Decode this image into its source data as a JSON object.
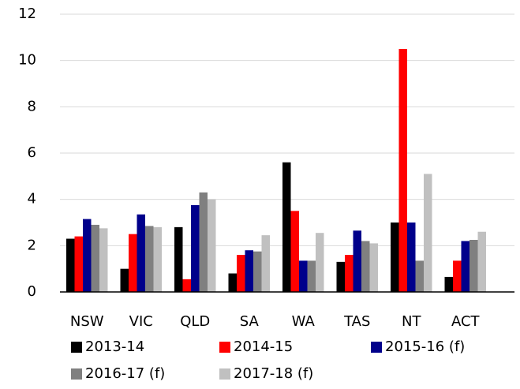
{
  "chart_data": {
    "type": "bar",
    "categories": [
      "NSW",
      "VIC",
      "QLD",
      "SA",
      "WA",
      "TAS",
      "NT",
      "ACT"
    ],
    "series": [
      {
        "name": "2013-14",
        "color": "#000000",
        "values": [
          2.3,
          1.0,
          2.8,
          0.8,
          5.6,
          1.3,
          3.0,
          0.65
        ]
      },
      {
        "name": "2014-15",
        "color": "#ff0000",
        "values": [
          2.4,
          2.5,
          0.55,
          1.6,
          3.5,
          1.6,
          10.5,
          1.35
        ]
      },
      {
        "name": "2015-16 (f)",
        "color": "#00008b",
        "values": [
          3.15,
          3.35,
          3.75,
          1.8,
          1.35,
          2.65,
          3.0,
          2.2
        ]
      },
      {
        "name": "2016-17 (f)",
        "color": "#808080",
        "values": [
          2.9,
          2.85,
          4.3,
          1.75,
          1.35,
          2.2,
          1.35,
          2.25
        ]
      },
      {
        "name": "2017-18 (f)",
        "color": "#c0c0c0",
        "values": [
          2.75,
          2.8,
          4.0,
          2.45,
          2.55,
          2.1,
          5.1,
          2.6
        ]
      }
    ],
    "ylim": [
      0,
      12
    ],
    "yticks": [
      0,
      2,
      4,
      6,
      8,
      10,
      12
    ],
    "grid": true,
    "legend": "bottom"
  }
}
